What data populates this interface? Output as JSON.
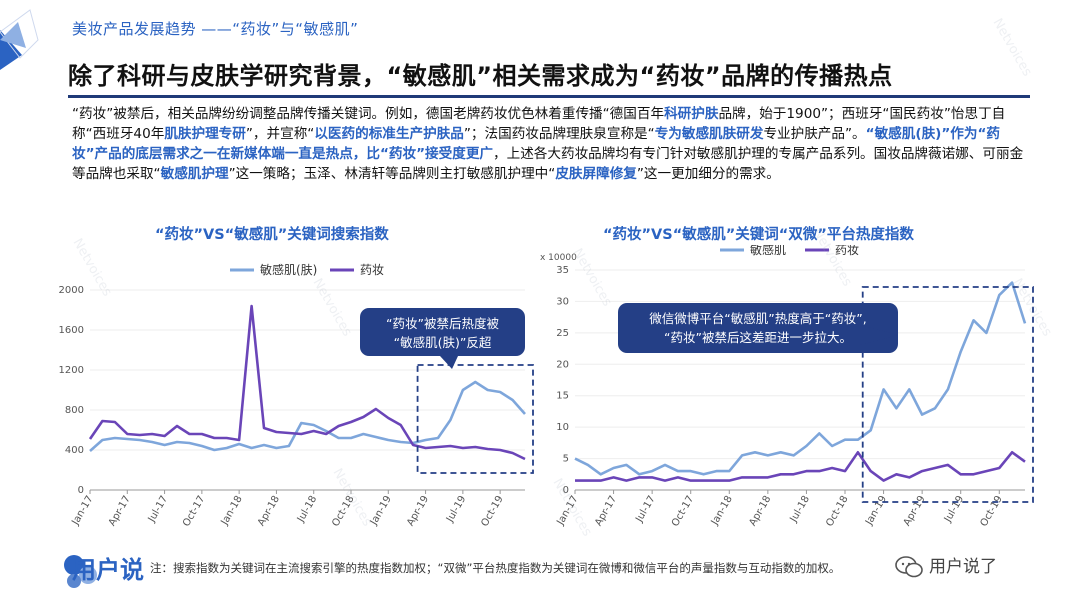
{
  "header": {
    "breadcrumb": "美妆产品发展趋势 ——“药妆”与“敏感肌”",
    "title": "除了科研与皮肤学研究背景，“敏感肌”相关需求成为“药妆”品牌的传播热点"
  },
  "body": {
    "s1": "“药妆”被禁后，相关品牌纷纷调整品牌传播关键词。例如，德国老牌药妆优色林着重传播“德国百年",
    "e1": "科研护肤",
    "s2": "品牌，始于1900”；西班牙“国民药妆”怡思丁自称“西班牙40年",
    "e2": "肌肤护理专研",
    "s3": "”，并宣称“",
    "e3": "以医药的标准生产护肤品",
    "s4": "”；法国药妆品牌理肤泉宣称是“",
    "e4": "专为敏感肌肤研发",
    "s5": "专业护肤产品”。",
    "e5": "“敏感肌(肤)”作为“药妆”产品的底层需求之一在新媒体端一直是热点，比“药妆”接受度更广",
    "s6": "，上述各大药妆品牌均有专门针对敏感肌护理的专属产品系列。国妆品牌薇诺娜、可丽金等品牌也采取“",
    "e6": "敏感肌护理",
    "s7": "”这一策略；玉泽、林清轩等品牌则主打敏感肌护理中“",
    "e7": "皮肤屏障修复",
    "s8": "”这一更加细分的需求。"
  },
  "footer": {
    "logo_text": "用户说",
    "note": "注：搜索指数为关键词在主流搜索引擎的热度指数加权；“双微”平台热度指数为关键词在微博和微信平台的声量指数与互动指数的加权。",
    "wechat_label": "用户说了"
  },
  "watermark_text": "Netvoices",
  "colors": {
    "accent": "#2b63c2",
    "navy": "#1f3a78",
    "series_a": "#7ea6db",
    "series_b": "#6a45b8",
    "box": "#243f86"
  },
  "chart_data": [
    {
      "type": "line",
      "title": "“药妆”VS“敏感肌”关键词搜索指数",
      "xlabel": "",
      "ylabel": "",
      "ylim": [
        0,
        2000
      ],
      "yticks": [
        0,
        400,
        800,
        1200,
        1600,
        2000
      ],
      "xtick_labels": [
        "Jan-17",
        "Apr-17",
        "Jul-17",
        "Oct-17",
        "Jan-18",
        "Apr-18",
        "Jul-18",
        "Oct-18",
        "Jan-19",
        "Apr-19",
        "Jul-19",
        "Oct-19"
      ],
      "n_points": 36,
      "legend_position": "top",
      "series": [
        {
          "name": "敏感肌(肤)",
          "values": [
            390,
            500,
            520,
            510,
            500,
            480,
            450,
            480,
            470,
            440,
            400,
            420,
            460,
            420,
            450,
            420,
            440,
            670,
            650,
            590,
            520,
            520,
            560,
            530,
            500,
            480,
            470,
            500,
            520,
            700,
            1000,
            1080,
            1000,
            980,
            900,
            760
          ]
        },
        {
          "name": "药妆",
          "values": [
            510,
            690,
            680,
            560,
            550,
            560,
            540,
            640,
            560,
            560,
            520,
            520,
            500,
            1840,
            620,
            580,
            570,
            560,
            590,
            560,
            640,
            680,
            730,
            810,
            720,
            650,
            450,
            420,
            430,
            440,
            420,
            430,
            410,
            400,
            370,
            310
          ]
        }
      ],
      "annotation": {
        "text_line1": "“药妆”被禁后热度被",
        "text_line2": "“敏感肌(肤)”反超"
      }
    },
    {
      "type": "line",
      "title": "“药妆”VS“敏感肌”关键词“双微”平台热度指数",
      "xlabel": "",
      "ylabel": "",
      "unit_label": "x 10000",
      "ylim": [
        0,
        35
      ],
      "yticks": [
        0,
        5,
        10,
        15,
        20,
        25,
        30,
        35
      ],
      "xtick_labels": [
        "Jan-17",
        "Apr-17",
        "Jul-17",
        "Oct-17",
        "Jan-18",
        "Apr-18",
        "Jul-18",
        "Oct-18",
        "Jan-19",
        "Apr-19",
        "Jul-19",
        "Oct-19"
      ],
      "n_points": 36,
      "legend_position": "top",
      "series": [
        {
          "name": "敏感肌",
          "values": [
            5,
            4,
            2.5,
            3.5,
            4,
            2.5,
            3,
            4,
            3,
            3,
            2.5,
            3,
            3,
            5.5,
            6,
            5.5,
            6,
            5.5,
            7,
            9,
            7,
            8,
            8,
            9.5,
            16,
            13,
            16,
            12,
            13,
            16,
            22,
            27,
            25,
            31,
            33,
            26.5
          ]
        },
        {
          "name": "药妆",
          "values": [
            1.5,
            1.5,
            1.5,
            2,
            1.5,
            2,
            2,
            1.5,
            2,
            1.5,
            1.5,
            1.5,
            1.5,
            2,
            2,
            2,
            2.5,
            2.5,
            3,
            3,
            3.5,
            3,
            6,
            3,
            1.5,
            2.5,
            2,
            3,
            3.5,
            4,
            2.5,
            2.5,
            3,
            3.5,
            6,
            4.5
          ]
        }
      ],
      "annotation": {
        "text_line1": "微信微博平台“敏感肌”热度高于“药妆”,",
        "text_line2": "“药妆”被禁后这差距进一步拉大。"
      }
    }
  ]
}
